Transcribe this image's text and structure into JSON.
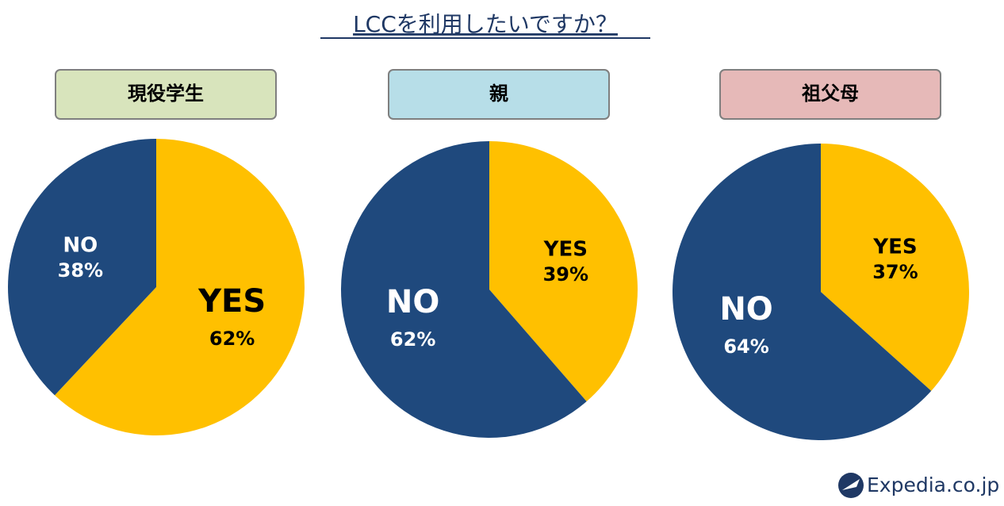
{
  "title": "LCCを利用したいですか？",
  "logo": "Expedia.co.jp",
  "chart_data": [
    {
      "type": "pie",
      "title": "現役学生",
      "header_color": "#d8e4bc",
      "categories": [
        "YES",
        "NO"
      ],
      "values": [
        62,
        38
      ],
      "value_labels": [
        "62%",
        "38%"
      ],
      "colors": [
        "#ffc000",
        "#1f497d"
      ]
    },
    {
      "type": "pie",
      "title": "親",
      "header_color": "#b7dee8",
      "categories": [
        "YES",
        "NO"
      ],
      "values": [
        39,
        62
      ],
      "value_labels": [
        "39%",
        "62%"
      ],
      "colors": [
        "#ffc000",
        "#1f497d"
      ]
    },
    {
      "type": "pie",
      "title": "祖父母",
      "header_color": "#e6b9b8",
      "categories": [
        "YES",
        "NO"
      ],
      "values": [
        37,
        64
      ],
      "value_labels": [
        "37%",
        "64%"
      ],
      "colors": [
        "#ffc000",
        "#1f497d"
      ]
    }
  ]
}
